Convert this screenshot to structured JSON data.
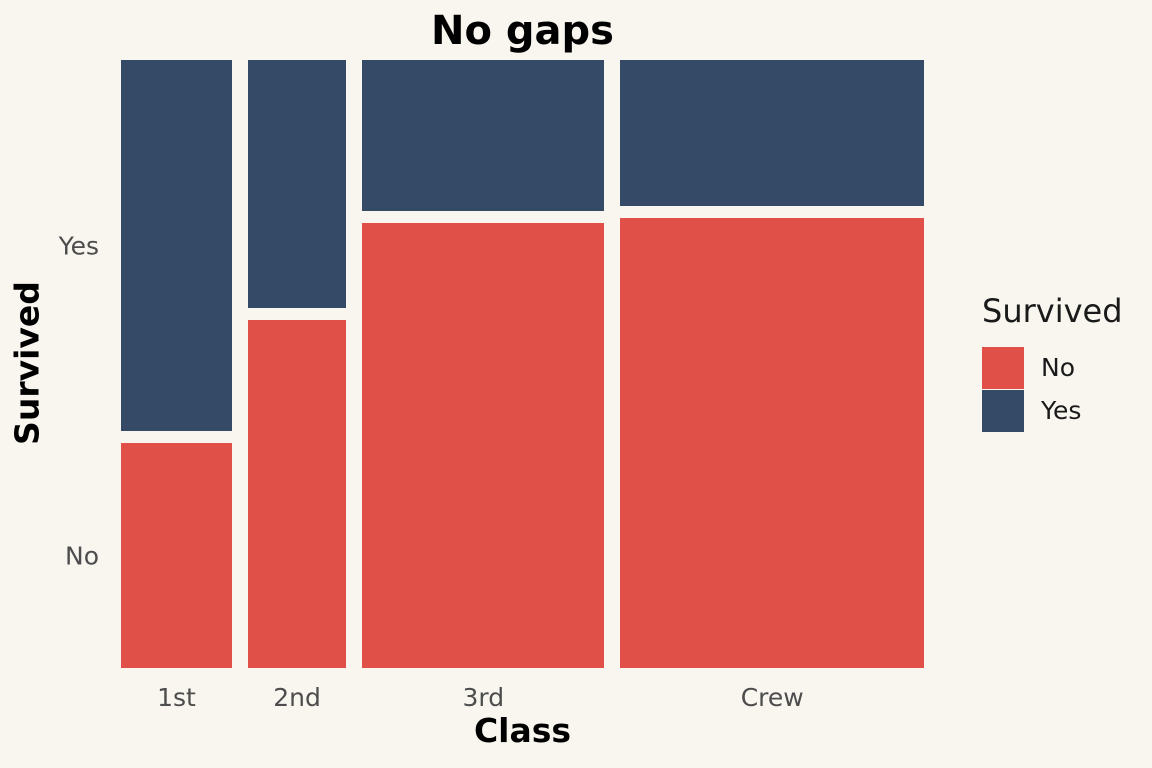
{
  "colors": {
    "background": "#f9f6f0",
    "survived_no": "#e05048",
    "survived_yes": "#344a67",
    "tick_text": "#4d4d4d",
    "title_text": "#000000",
    "legend_text": "#1a1a1a"
  },
  "chart_data": {
    "type": "mosaic",
    "title": "No gaps",
    "xlabel": "Class",
    "ylabel": "Survived",
    "categories": [
      "1st",
      "2nd",
      "3rd",
      "Crew"
    ],
    "x_tick_labels": [
      "1st",
      "2nd",
      "3rd",
      "Crew"
    ],
    "y_tick_labels": [
      "Yes",
      "No"
    ],
    "column_width_fractions": [
      0.147,
      0.13,
      0.321,
      0.402
    ],
    "series": [
      {
        "name": "Yes",
        "color": "#344a67",
        "fractions": [
          0.623,
          0.416,
          0.253,
          0.245
        ]
      },
      {
        "name": "No",
        "color": "#e05048",
        "fractions": [
          0.377,
          0.584,
          0.747,
          0.755
        ]
      }
    ],
    "legend": {
      "title": "Survived",
      "position": "right",
      "entries": [
        {
          "label": "No",
          "color": "#e05048"
        },
        {
          "label": "Yes",
          "color": "#344a67"
        }
      ]
    },
    "grid": false,
    "axis_lines": false
  }
}
